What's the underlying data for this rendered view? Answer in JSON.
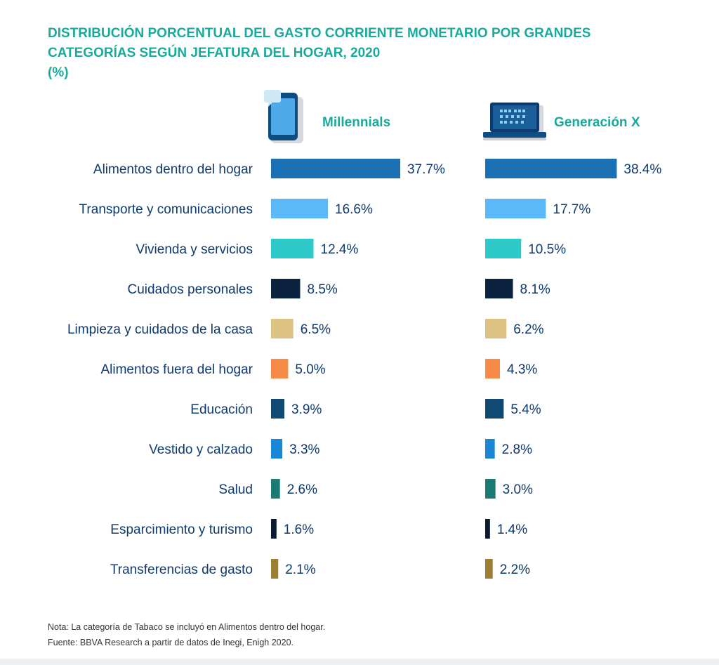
{
  "title": "DISTRIBUCIÓN PORCENTUAL DEL GASTO CORRIENTE MONETARIO POR GRANDES CATEGORÍAS SEGÚN JEFATURA DEL HOGAR, 2020",
  "title_unit": "(%)",
  "note": "Nota: La categoría de Tabaco se incluyó en Alimentos dentro del hogar.",
  "source": "Fuente: BBVA Research a partir de datos de Inegi, Enigh 2020.",
  "icons": {
    "millennials": "smartphone-icon",
    "genx": "laptop-icon"
  },
  "chart_data": {
    "type": "bar",
    "orientation": "horizontal",
    "title": "DISTRIBUCIÓN PORCENTUAL DEL GASTO CORRIENTE MONETARIO POR GRANDES CATEGORÍAS SEGÚN JEFATURA DEL HOGAR, 2020",
    "unit": "%",
    "categories": [
      "Alimentos dentro del hogar",
      "Transporte y comunicaciones",
      "Vivienda y servicios",
      "Cuidados personales",
      "Limpieza y cuidados de la casa",
      "Alimentos fuera del hogar",
      "Educación",
      "Vestido y calzado",
      "Salud",
      "Esparcimiento y turismo",
      "Transferencias de gasto"
    ],
    "colors": [
      "#1b6fb3",
      "#5bb9f7",
      "#2ec9c9",
      "#0c2340",
      "#dcc283",
      "#f68b47",
      "#114a70",
      "#1a86d6",
      "#1b7a73",
      "#0a1a2f",
      "#9d7f33"
    ],
    "series": [
      {
        "name": "Millennials",
        "values": [
          37.7,
          16.6,
          12.4,
          8.5,
          6.5,
          5.0,
          3.9,
          3.3,
          2.6,
          1.6,
          2.1
        ],
        "labels": [
          "37.7%",
          "16.6%",
          "12.4%",
          "8.5%",
          "6.5%",
          "5.0%",
          "3.9%",
          "3.3%",
          "2.6%",
          "1.6%",
          "2.1%"
        ]
      },
      {
        "name": "Generación X",
        "values": [
          38.4,
          17.7,
          10.5,
          8.1,
          6.2,
          4.3,
          5.4,
          2.8,
          3.0,
          1.4,
          2.2
        ],
        "labels": [
          "38.4%",
          "17.7%",
          "10.5%",
          "8.1%",
          "6.2%",
          "4.3%",
          "5.4%",
          "2.8%",
          "3.0%",
          "1.4%",
          "2.2%"
        ]
      }
    ],
    "xlim": [
      0,
      40
    ],
    "legend": "column headers above each bar group",
    "grid": false
  }
}
